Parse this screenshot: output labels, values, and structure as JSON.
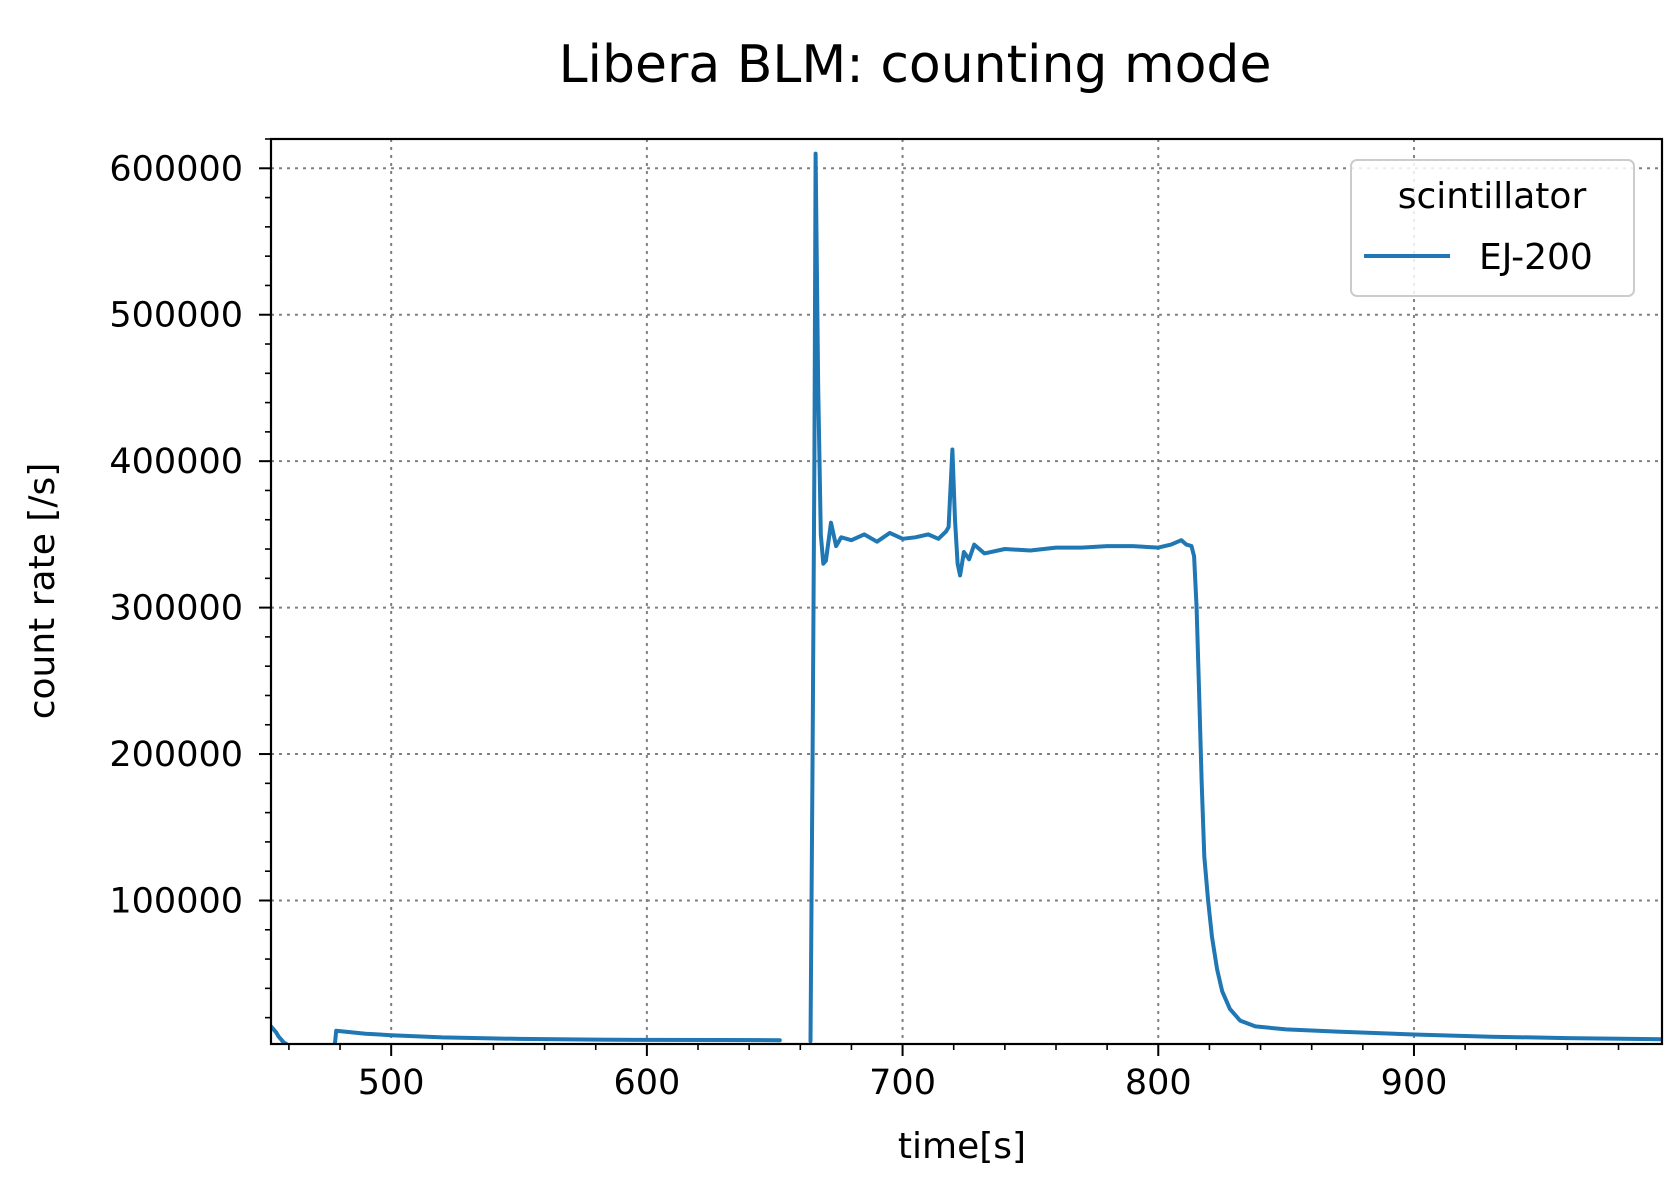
{
  "chart_data": {
    "type": "line",
    "title": "Libera BLM: counting mode",
    "xlabel": "time[s]",
    "ylabel": "count rate [/s]",
    "xlim": [
      453,
      997
    ],
    "ylim": [
      2000,
      620000
    ],
    "xticks": [
      500,
      600,
      700,
      800,
      900
    ],
    "yticks": [
      100000,
      200000,
      300000,
      400000,
      500000,
      600000
    ],
    "xtick_labels": [
      "500",
      "600",
      "700",
      "800",
      "900"
    ],
    "ytick_labels": [
      "100000",
      "200000",
      "300000",
      "400000",
      "500000",
      "600000"
    ],
    "grid": true,
    "legend": {
      "title": "scintillator",
      "placement": "upper-right"
    },
    "series": [
      {
        "name": "EJ-200",
        "color": "#1f77b4",
        "segments": [
          [
            [
              453,
              14000
            ],
            [
              455,
              10000
            ],
            [
              456,
              7000
            ],
            [
              458,
              3000
            ],
            [
              459,
              2000
            ]
          ],
          [
            [
              478,
              2000
            ],
            [
              478.5,
              11000
            ],
            [
              490,
              9000
            ],
            [
              500,
              8000
            ],
            [
              520,
              6500
            ],
            [
              550,
              5500
            ],
            [
              580,
              5000
            ],
            [
              600,
              4800
            ],
            [
              630,
              4700
            ],
            [
              652,
              4600
            ]
          ],
          [
            [
              664,
              4000
            ],
            [
              664.8,
              200000
            ],
            [
              665.5,
              400000
            ],
            [
              666,
              610000
            ],
            [
              667,
              450000
            ],
            [
              668,
              350000
            ],
            [
              669,
              330000
            ],
            [
              670,
              332000
            ],
            [
              672,
              358000
            ],
            [
              674,
              342000
            ],
            [
              676,
              348000
            ],
            [
              680,
              346000
            ],
            [
              685,
              350000
            ],
            [
              690,
              345000
            ],
            [
              695,
              351000
            ],
            [
              700,
              347000
            ],
            [
              705,
              348000
            ],
            [
              710,
              350000
            ],
            [
              714,
              347000
            ],
            [
              717,
              352000
            ],
            [
              718,
              355000
            ],
            [
              719.5,
              408000
            ],
            [
              720.5,
              360000
            ],
            [
              721.5,
              330000
            ],
            [
              722.5,
              322000
            ],
            [
              724,
              338000
            ],
            [
              726,
              333000
            ],
            [
              728,
              343000
            ],
            [
              732,
              337000
            ],
            [
              740,
              340000
            ],
            [
              750,
              339000
            ],
            [
              760,
              341000
            ],
            [
              770,
              341000
            ],
            [
              780,
              342000
            ],
            [
              790,
              342000
            ],
            [
              800,
              341000
            ],
            [
              805,
              343000
            ],
            [
              809,
              346000
            ],
            [
              811,
              343000
            ],
            [
              813,
              342000
            ],
            [
              814,
              335000
            ],
            [
              815,
              300000
            ],
            [
              816,
              240000
            ],
            [
              817,
              180000
            ],
            [
              818,
              130000
            ],
            [
              819.5,
              100000
            ],
            [
              821,
              75000
            ],
            [
              823,
              53000
            ],
            [
              825,
              38000
            ],
            [
              828,
              26000
            ],
            [
              832,
              18000
            ],
            [
              838,
              14000
            ],
            [
              850,
              12000
            ],
            [
              870,
              10500
            ],
            [
              900,
              8500
            ],
            [
              930,
              7000
            ],
            [
              960,
              6000
            ],
            [
              997,
              5200
            ]
          ]
        ]
      }
    ]
  }
}
